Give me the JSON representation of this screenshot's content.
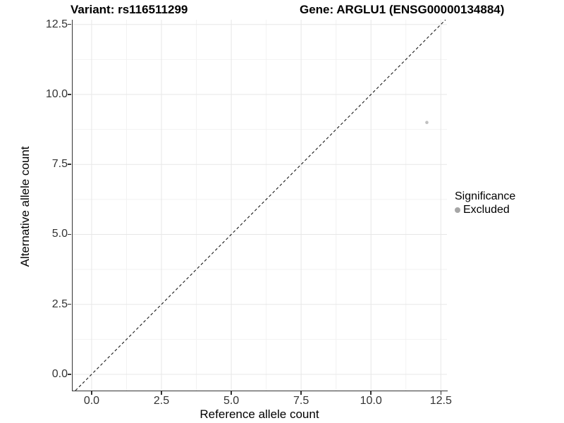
{
  "titles": {
    "variant": "Variant: rs116511299",
    "gene": "Gene: ARGLU1 (ENSG00000134884)"
  },
  "chart_data": {
    "type": "scatter",
    "xlabel": "Reference allele count",
    "ylabel": "Alternative allele count",
    "xlim": [
      -0.68,
      12.72
    ],
    "ylim": [
      -0.58,
      12.67
    ],
    "x_ticks": [
      0.0,
      2.5,
      5.0,
      7.5,
      10.0,
      12.5
    ],
    "y_ticks": [
      0.0,
      2.5,
      5.0,
      7.5,
      10.0,
      12.5
    ],
    "tick_decimals": 1,
    "grid": "major and minor gridlines, white background",
    "series": [
      {
        "name": "Excluded",
        "point_color": "#c0c0c0",
        "points": [
          {
            "x": 12,
            "y": 9
          }
        ]
      }
    ],
    "reference_line": {
      "kind": "abline",
      "slope": 1,
      "intercept": 0,
      "style": "dashed",
      "color": "#1a1a1a"
    },
    "legend": {
      "title": "Significance",
      "position": "right",
      "items": [
        {
          "label": "Excluded",
          "key_color": "#a6a6a6"
        }
      ]
    }
  },
  "colors": {
    "grid_major": "#e7e7e7",
    "grid_minor": "#f2f2f2",
    "axis": "#333333"
  }
}
